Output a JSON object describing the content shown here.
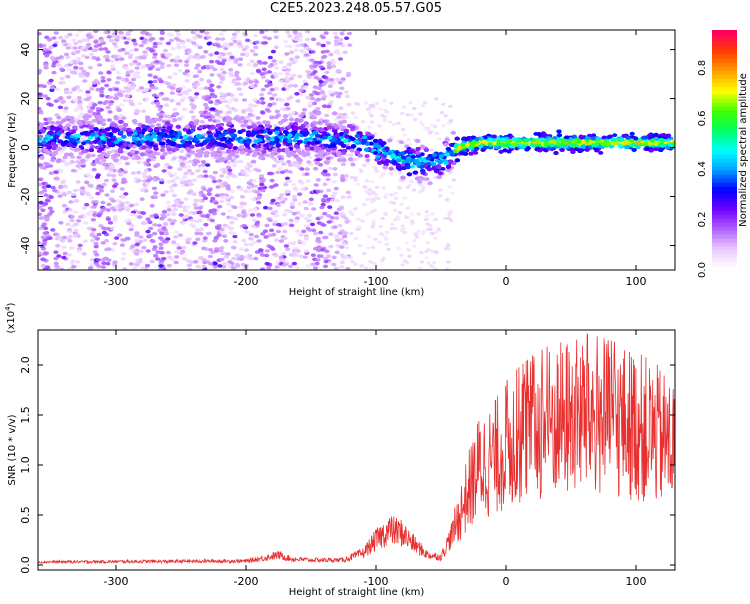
{
  "title": "C2E5.2023.248.05.57.G05",
  "chart_data": [
    {
      "type": "heatmap",
      "xlabel": "Height of straight line (km)",
      "ylabel": "Frequency (Hz)",
      "xlim": [
        -360,
        130
      ],
      "ylim": [
        -50,
        48
      ],
      "x_ticks": [
        -300,
        -200,
        -100,
        0,
        100
      ],
      "y_ticks": [
        -40,
        -20,
        0,
        20,
        40
      ],
      "colorbar": {
        "label": "Normalized spectral amplitude",
        "range": [
          0,
          0.95
        ],
        "ticks": [
          0.0,
          0.2,
          0.4,
          0.6,
          0.8
        ],
        "colors": [
          "#ffffff",
          "#e8c8ff",
          "#b060ff",
          "#7000ff",
          "#0000ff",
          "#00a0ff",
          "#00ffff",
          "#00ff60",
          "#40ff00",
          "#ffff00",
          "#ffa000",
          "#ff4000",
          "#ff0060"
        ]
      },
      "ridge": {
        "x": [
          -360,
          -300,
          -250,
          -200,
          -150,
          -120,
          -100,
          -90,
          -80,
          -70,
          -60,
          -50,
          -40,
          -30,
          -20,
          0,
          50,
          100,
          130
        ],
        "y": [
          4,
          4,
          4,
          4,
          4,
          3,
          0,
          -3,
          -5,
          -6,
          -6,
          -5,
          -1,
          1,
          2,
          2,
          2,
          2,
          2
        ]
      }
    },
    {
      "type": "line",
      "xlabel": "Height of straight line (km)",
      "ylabel": "SNR (10 * v/v)",
      "y_multiplier_label": "(x10",
      "y_multiplier_exponent": "4",
      "y_multiplier_close": ")",
      "xlim": [
        -360,
        130
      ],
      "ylim": [
        -0.05,
        2.35
      ],
      "x_ticks": [
        -300,
        -200,
        -100,
        0,
        100
      ],
      "y_ticks": [
        0.0,
        0.5,
        1.0,
        1.5,
        2.0
      ],
      "line_color": "#e83030",
      "envelope": {
        "x": [
          -360,
          -200,
          -190,
          -175,
          -165,
          -150,
          -125,
          -110,
          -100,
          -90,
          -80,
          -70,
          -60,
          -50,
          -40,
          -30,
          -20,
          -10,
          0,
          20,
          40,
          60,
          80,
          100,
          115,
          130
        ],
        "y": [
          0.03,
          0.04,
          0.06,
          0.1,
          0.06,
          0.05,
          0.05,
          0.12,
          0.25,
          0.35,
          0.32,
          0.2,
          0.1,
          0.08,
          0.35,
          0.7,
          1.0,
          1.05,
          1.2,
          1.35,
          1.45,
          1.5,
          1.45,
          1.4,
          1.3,
          1.2
        ]
      }
    }
  ]
}
